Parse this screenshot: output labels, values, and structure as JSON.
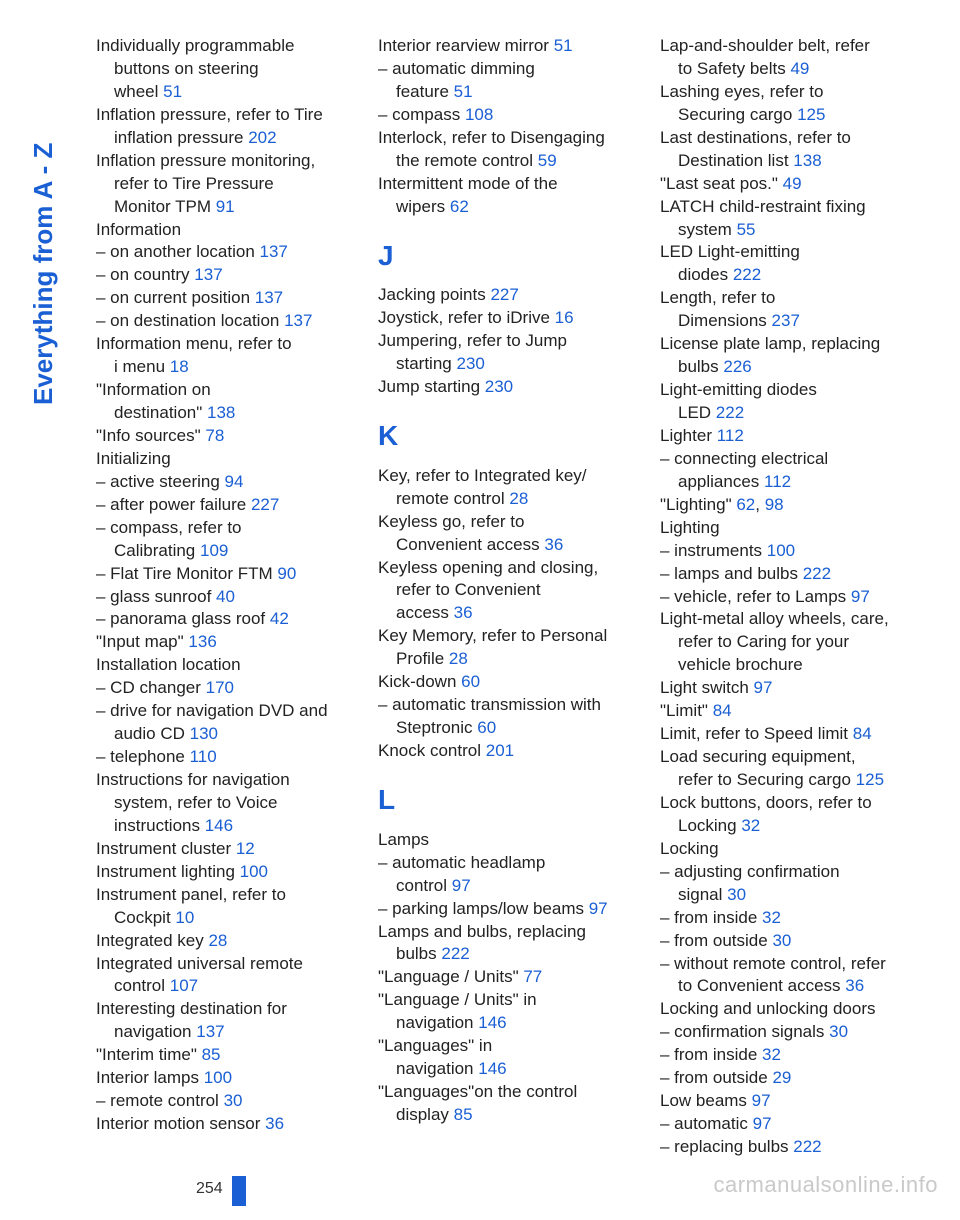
{
  "side_label": "Everything from A - Z",
  "page_number": "254",
  "watermark": "carmanualsonline.info",
  "colors": {
    "link": "#1a5fd4",
    "text": "#222",
    "watermark": "#c9c9c9"
  },
  "columns": [
    {
      "items": [
        {
          "lines": [
            "Individually programmable"
          ],
          "cont": [
            "buttons on steering",
            "wheel "
          ],
          "pg": "51"
        },
        {
          "lines": [
            "Inflation pressure, refer to Tire"
          ],
          "cont": [
            "inflation pressure "
          ],
          "pg": "202"
        },
        {
          "lines": [
            "Inflation pressure monitoring,"
          ],
          "cont": [
            "refer to Tire Pressure",
            "Monitor TPM "
          ],
          "pg": "91"
        },
        {
          "lines": [
            "Information"
          ]
        },
        {
          "lines": [
            "– on another location "
          ],
          "pg": "137"
        },
        {
          "lines": [
            "– on country "
          ],
          "pg": "137"
        },
        {
          "lines": [
            "– on current position "
          ],
          "pg": "137"
        },
        {
          "lines": [
            "– on destination location "
          ],
          "pg": "137"
        },
        {
          "lines": [
            "Information menu, refer to"
          ],
          "cont": [
            "i menu "
          ],
          "pg": "18"
        },
        {
          "lines": [
            "\"Information on"
          ],
          "cont": [
            "destination\" "
          ],
          "pg": "138"
        },
        {
          "lines": [
            "\"Info sources\" "
          ],
          "pg": "78"
        },
        {
          "lines": [
            "Initializing"
          ]
        },
        {
          "lines": [
            "– active steering "
          ],
          "pg": "94"
        },
        {
          "lines": [
            "– after power failure "
          ],
          "pg": "227"
        },
        {
          "lines": [
            "– compass, refer to"
          ],
          "cont": [
            "Calibrating "
          ],
          "pg": "109"
        },
        {
          "lines": [
            "– Flat Tire Monitor FTM "
          ],
          "pg": "90"
        },
        {
          "lines": [
            "– glass sunroof "
          ],
          "pg": "40"
        },
        {
          "lines": [
            "– panorama glass roof "
          ],
          "pg": "42"
        },
        {
          "lines": [
            "\"Input map\" "
          ],
          "pg": "136"
        },
        {
          "lines": [
            "Installation location"
          ]
        },
        {
          "lines": [
            "– CD changer "
          ],
          "pg": "170"
        },
        {
          "lines": [
            "– drive for navigation DVD and"
          ],
          "cont": [
            "audio CD "
          ],
          "pg": "130"
        },
        {
          "lines": [
            "– telephone "
          ],
          "pg": "110"
        },
        {
          "lines": [
            "Instructions for navigation"
          ],
          "cont": [
            "system, refer to Voice",
            "instructions "
          ],
          "pg": "146"
        },
        {
          "lines": [
            "Instrument cluster "
          ],
          "pg": "12"
        },
        {
          "lines": [
            "Instrument lighting "
          ],
          "pg": "100"
        },
        {
          "lines": [
            "Instrument panel, refer to"
          ],
          "cont": [
            "Cockpit "
          ],
          "pg": "10"
        },
        {
          "lines": [
            "Integrated key "
          ],
          "pg": "28"
        },
        {
          "lines": [
            "Integrated universal remote"
          ],
          "cont": [
            "control "
          ],
          "pg": "107"
        },
        {
          "lines": [
            "Interesting destination for"
          ],
          "cont": [
            "navigation "
          ],
          "pg": "137"
        },
        {
          "lines": [
            "\"Interim time\" "
          ],
          "pg": "85"
        },
        {
          "lines": [
            "Interior lamps "
          ],
          "pg": "100"
        },
        {
          "lines": [
            "– remote control "
          ],
          "pg": "30"
        },
        {
          "lines": [
            "Interior motion sensor "
          ],
          "pg": "36"
        }
      ]
    },
    {
      "items": [
        {
          "lines": [
            "Interior rearview mirror "
          ],
          "pg": "51"
        },
        {
          "lines": [
            "– automatic dimming"
          ],
          "cont": [
            "feature "
          ],
          "pg": "51"
        },
        {
          "lines": [
            "– compass "
          ],
          "pg": "108"
        },
        {
          "lines": [
            "Interlock, refer to Disengaging"
          ],
          "cont": [
            "the remote control "
          ],
          "pg": "59"
        },
        {
          "lines": [
            "Intermittent mode of the"
          ],
          "cont": [
            "wipers "
          ],
          "pg": "62"
        },
        {
          "letter": "J"
        },
        {
          "lines": [
            "Jacking points "
          ],
          "pg": "227"
        },
        {
          "lines": [
            "Joystick, refer to iDrive "
          ],
          "pg": "16"
        },
        {
          "lines": [
            "Jumpering, refer to Jump"
          ],
          "cont": [
            "starting "
          ],
          "pg": "230"
        },
        {
          "lines": [
            "Jump starting "
          ],
          "pg": "230"
        },
        {
          "letter": "K"
        },
        {
          "lines": [
            "Key, refer to Integrated key/"
          ],
          "cont": [
            "remote control "
          ],
          "pg": "28"
        },
        {
          "lines": [
            "Keyless go, refer to"
          ],
          "cont": [
            "Convenient access "
          ],
          "pg": "36"
        },
        {
          "lines": [
            "Keyless opening and closing,"
          ],
          "cont": [
            "refer to Convenient",
            "access "
          ],
          "pg": "36"
        },
        {
          "lines": [
            "Key Memory, refer to Personal"
          ],
          "cont": [
            "Profile "
          ],
          "pg": "28"
        },
        {
          "lines": [
            "Kick-down "
          ],
          "pg": "60"
        },
        {
          "lines": [
            "– automatic transmission with"
          ],
          "cont": [
            "Steptronic "
          ],
          "pg": "60"
        },
        {
          "lines": [
            "Knock control "
          ],
          "pg": "201"
        },
        {
          "letter": "L"
        },
        {
          "lines": [
            "Lamps"
          ]
        },
        {
          "lines": [
            "– automatic headlamp"
          ],
          "cont": [
            "control "
          ],
          "pg": "97"
        },
        {
          "lines": [
            "– parking lamps/low beams "
          ],
          "pg": "97"
        },
        {
          "lines": [
            "Lamps and bulbs, replacing"
          ],
          "cont": [
            "bulbs "
          ],
          "pg": "222"
        },
        {
          "lines": [
            "\"Language / Units\" "
          ],
          "pg": "77"
        },
        {
          "lines": [
            "\"Language / Units\" in"
          ],
          "cont": [
            "navigation "
          ],
          "pg": "146"
        },
        {
          "lines": [
            "\"Languages\" in"
          ],
          "cont": [
            "navigation "
          ],
          "pg": "146"
        },
        {
          "lines": [
            "\"Languages\"on the control"
          ],
          "cont": [
            "display "
          ],
          "pg": "85"
        }
      ]
    },
    {
      "items": [
        {
          "lines": [
            "Lap-and-shoulder belt, refer"
          ],
          "cont": [
            "to Safety belts "
          ],
          "pg": "49"
        },
        {
          "lines": [
            "Lashing eyes, refer to"
          ],
          "cont": [
            "Securing cargo "
          ],
          "pg": "125"
        },
        {
          "lines": [
            "Last destinations, refer to"
          ],
          "cont": [
            "Destination list "
          ],
          "pg": "138"
        },
        {
          "lines": [
            "\"Last seat pos.\" "
          ],
          "pg": "49"
        },
        {
          "lines": [
            "LATCH child-restraint fixing"
          ],
          "cont": [
            "system "
          ],
          "pg": "55"
        },
        {
          "lines": [
            "LED Light-emitting"
          ],
          "cont": [
            "diodes "
          ],
          "pg": "222"
        },
        {
          "lines": [
            "Length, refer to"
          ],
          "cont": [
            "Dimensions "
          ],
          "pg": "237"
        },
        {
          "lines": [
            "License plate lamp, replacing"
          ],
          "cont": [
            "bulbs "
          ],
          "pg": "226"
        },
        {
          "lines": [
            "Light-emitting diodes"
          ],
          "cont": [
            "LED "
          ],
          "pg": "222"
        },
        {
          "lines": [
            "Lighter "
          ],
          "pg": "112"
        },
        {
          "lines": [
            "– connecting electrical"
          ],
          "cont": [
            "appliances "
          ],
          "pg": "112"
        },
        {
          "lines": [
            "\"Lighting\" "
          ],
          "pg": "62",
          "extra_pg": "98"
        },
        {
          "lines": [
            "Lighting"
          ]
        },
        {
          "lines": [
            "– instruments "
          ],
          "pg": "100"
        },
        {
          "lines": [
            "– lamps and bulbs "
          ],
          "pg": "222"
        },
        {
          "lines": [
            "– vehicle, refer to Lamps "
          ],
          "pg": "97"
        },
        {
          "lines": [
            "Light-metal alloy wheels, care,"
          ],
          "cont": [
            "refer to Caring for your",
            "vehicle brochure"
          ]
        },
        {
          "lines": [
            "Light switch "
          ],
          "pg": "97"
        },
        {
          "lines": [
            "\"Limit\" "
          ],
          "pg": "84"
        },
        {
          "lines": [
            "Limit, refer to Speed limit "
          ],
          "pg": "84"
        },
        {
          "lines": [
            "Load securing equipment,"
          ],
          "cont": [
            "refer to Securing cargo "
          ],
          "pg": "125"
        },
        {
          "lines": [
            "Lock buttons, doors, refer to"
          ],
          "cont": [
            "Locking "
          ],
          "pg": "32"
        },
        {
          "lines": [
            "Locking"
          ]
        },
        {
          "lines": [
            "– adjusting confirmation"
          ],
          "cont": [
            "signal "
          ],
          "pg": "30"
        },
        {
          "lines": [
            "– from inside "
          ],
          "pg": "32"
        },
        {
          "lines": [
            "– from outside "
          ],
          "pg": "30"
        },
        {
          "lines": [
            "– without remote control, refer"
          ],
          "cont": [
            "to Convenient access "
          ],
          "pg": "36"
        },
        {
          "lines": [
            "Locking and unlocking doors"
          ]
        },
        {
          "lines": [
            "– confirmation signals "
          ],
          "pg": "30"
        },
        {
          "lines": [
            "– from inside "
          ],
          "pg": "32"
        },
        {
          "lines": [
            "– from outside "
          ],
          "pg": "29"
        },
        {
          "lines": [
            "Low beams "
          ],
          "pg": "97"
        },
        {
          "lines": [
            "– automatic "
          ],
          "pg": "97"
        },
        {
          "lines": [
            "– replacing bulbs "
          ],
          "pg": "222"
        }
      ]
    }
  ]
}
